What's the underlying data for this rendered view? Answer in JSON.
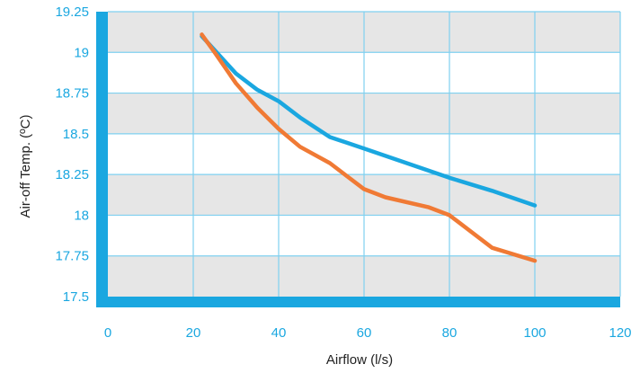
{
  "chart_data": {
    "type": "line",
    "xlabel": "Airflow (l/s)",
    "ylabel": "Air-off Temp. (ºC)",
    "xlim": [
      0,
      120
    ],
    "ylim": [
      17.5,
      19.25
    ],
    "x_ticks": [
      0,
      20,
      40,
      60,
      80,
      100,
      120
    ],
    "x_tick_labels": [
      "0",
      "20",
      "40",
      "60",
      "80",
      "100",
      "120"
    ],
    "y_ticks": [
      17.5,
      17.75,
      18,
      18.25,
      18.5,
      18.75,
      19,
      19.25
    ],
    "y_tick_labels": [
      "17.5",
      "17.75",
      "18",
      "18.25",
      "18.5",
      "18.75",
      "19",
      "19.25"
    ],
    "grid": true,
    "banded_background": true,
    "series": [
      {
        "color": "#1aa7e0",
        "points": [
          [
            22,
            19.1
          ],
          [
            30,
            18.87
          ],
          [
            35,
            18.77
          ],
          [
            40,
            18.7
          ],
          [
            45,
            18.6
          ],
          [
            52,
            18.48
          ],
          [
            60,
            18.41
          ],
          [
            70,
            18.32
          ],
          [
            80,
            18.23
          ],
          [
            90,
            18.15
          ],
          [
            100,
            18.06
          ]
        ]
      },
      {
        "color": "#f07a35",
        "points": [
          [
            22,
            19.11
          ],
          [
            25,
            19.0
          ],
          [
            30,
            18.81
          ],
          [
            35,
            18.66
          ],
          [
            40,
            18.53
          ],
          [
            45,
            18.42
          ],
          [
            52,
            18.32
          ],
          [
            60,
            18.16
          ],
          [
            65,
            18.11
          ],
          [
            75,
            18.05
          ],
          [
            80,
            18.0
          ],
          [
            90,
            17.8
          ],
          [
            100,
            17.72
          ]
        ]
      }
    ]
  }
}
